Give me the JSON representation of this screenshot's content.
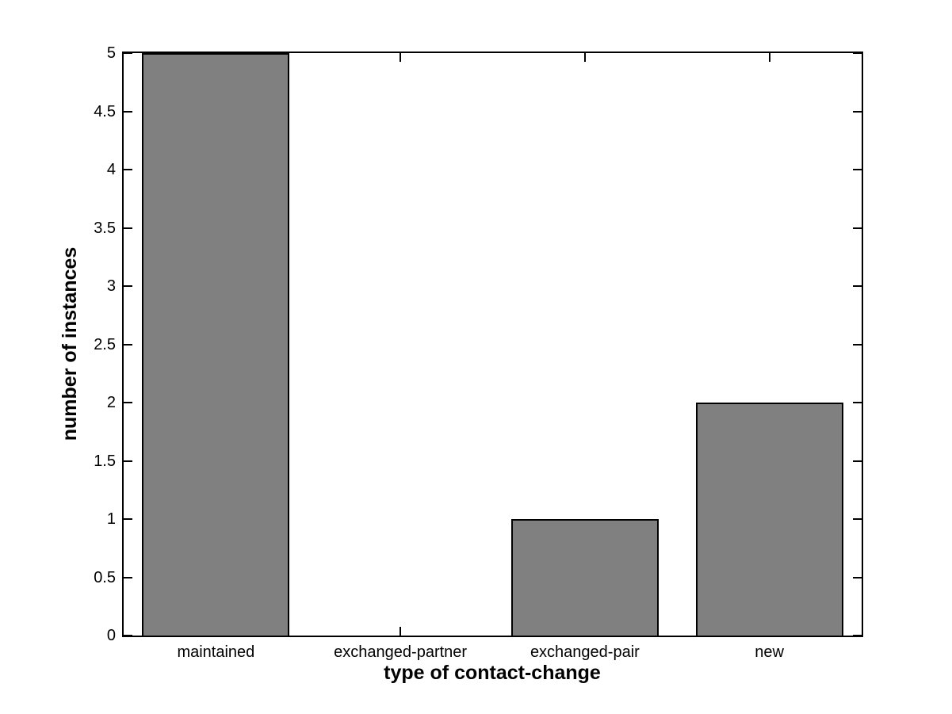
{
  "chart_data": {
    "type": "bar",
    "title": "",
    "xlabel": "type of contact-change",
    "ylabel": "number of instances",
    "categories": [
      "maintained",
      "exchanged-partner",
      "exchanged-pair",
      "new"
    ],
    "values": [
      5,
      0,
      1,
      2
    ],
    "ylim": [
      0,
      5
    ],
    "yticks": [
      0,
      0.5,
      1,
      1.5,
      2,
      2.5,
      3,
      3.5,
      4,
      4.5,
      5
    ],
    "ytick_labels": [
      "0",
      "0.5",
      "1",
      "1.5",
      "2",
      "2.5",
      "3",
      "3.5",
      "4",
      "4.5",
      "5"
    ],
    "bar_color": "#808080",
    "bar_edge_color": "#000000",
    "axis_color": "#000000",
    "background_color": "#ffffff",
    "bar_width_fraction": 0.8,
    "grid": false,
    "legend": null,
    "tick_direction": "in",
    "box": true
  }
}
